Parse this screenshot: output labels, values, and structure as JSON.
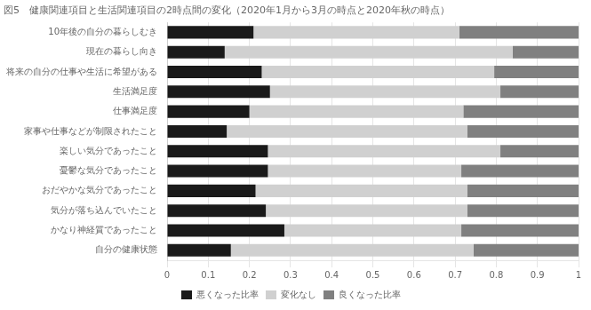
{
  "chart_data": {
    "type": "bar",
    "orientation": "horizontal",
    "stacked": true,
    "title": "図5　健康関連項目と生活関連項目の2時点間の変化（2020年1月から3月の時点と2020年秋の時点）",
    "categories": [
      "10年後の自分の暮らしむき",
      "現在の暮らし向き",
      "将来の自分の仕事や生活に希望がある",
      "生活満足度",
      "仕事満足度",
      "家事や仕事などが制限されたこと",
      "楽しい気分であったこと",
      "憂鬱な気分であったこと",
      "おだやかな気分であったこと",
      "気分が落ち込んでいたこと",
      "かなり神経質であったこと",
      "自分の健康状態"
    ],
    "series": [
      {
        "name": "悪くなった比率",
        "color": "#1a1a1a",
        "values": [
          0.21,
          0.14,
          0.23,
          0.25,
          0.2,
          0.145,
          0.245,
          0.245,
          0.215,
          0.24,
          0.285,
          0.155
        ]
      },
      {
        "name": "変化なし",
        "color": "#d0d0d0",
        "values": [
          0.5,
          0.7,
          0.565,
          0.56,
          0.52,
          0.585,
          0.565,
          0.47,
          0.515,
          0.49,
          0.43,
          0.59
        ]
      },
      {
        "name": "良くなった比率",
        "color": "#808080",
        "values": [
          0.29,
          0.16,
          0.205,
          0.19,
          0.28,
          0.27,
          0.19,
          0.285,
          0.27,
          0.27,
          0.285,
          0.255
        ]
      }
    ],
    "xlim": [
      0,
      1
    ],
    "xticks": [
      0,
      0.1,
      0.2,
      0.3,
      0.4,
      0.5,
      0.6,
      0.7,
      0.8,
      0.9,
      1
    ],
    "grid": true,
    "legend": "bottom"
  }
}
